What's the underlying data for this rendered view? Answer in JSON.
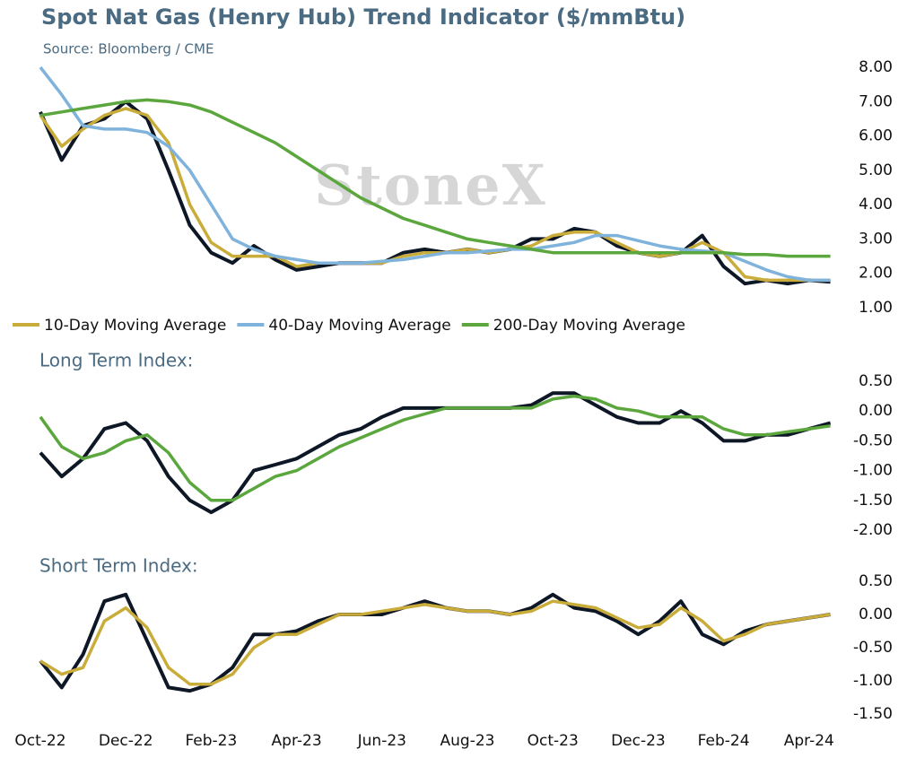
{
  "chart_data": [
    {
      "type": "line",
      "title": "Spot Nat Gas (Henry Hub) Trend Indicator ($/mmBtu)",
      "subtitle": "Source: Bloomberg / CME",
      "watermark": "StoneX",
      "ylim": [
        1,
        8
      ],
      "yticks": [
        {
          "value": 8,
          "label": "8.00"
        },
        {
          "value": 7,
          "label": "7.00"
        },
        {
          "value": 6,
          "label": "6.00"
        },
        {
          "value": 5,
          "label": "5.00"
        },
        {
          "value": 4,
          "label": "4.00"
        },
        {
          "value": 3,
          "label": "3.00"
        },
        {
          "value": 2,
          "label": "2.00"
        },
        {
          "value": 1,
          "label": "1.00"
        }
      ],
      "legend": "bottom",
      "grid": false,
      "series": [
        {
          "color": "#0d1726",
          "values": [
            6.7,
            5.3,
            6.3,
            6.5,
            7.0,
            6.5,
            5.0,
            3.4,
            2.6,
            2.3,
            2.8,
            2.4,
            2.1,
            2.2,
            2.3,
            2.3,
            2.3,
            2.6,
            2.7,
            2.6,
            2.7,
            2.6,
            2.7,
            3.0,
            3.0,
            3.3,
            3.2,
            2.8,
            2.6,
            2.5,
            2.6,
            3.1,
            2.2,
            1.7,
            1.8,
            1.7,
            1.8,
            1.75
          ]
        },
        {
          "name": "10-Day Moving Average",
          "color": "#c9ac3a",
          "values": [
            6.6,
            5.7,
            6.2,
            6.6,
            6.8,
            6.6,
            5.8,
            4.0,
            2.9,
            2.5,
            2.5,
            2.5,
            2.2,
            2.3,
            2.3,
            2.3,
            2.3,
            2.5,
            2.6,
            2.6,
            2.7,
            2.6,
            2.7,
            2.8,
            3.1,
            3.2,
            3.2,
            2.9,
            2.6,
            2.5,
            2.6,
            2.9,
            2.6,
            1.9,
            1.8,
            1.8,
            1.8,
            1.8
          ]
        },
        {
          "name": "40-Day Moving Average",
          "color": "#80b3dc",
          "values": [
            8.0,
            7.2,
            6.3,
            6.2,
            6.2,
            6.1,
            5.7,
            5.0,
            4.0,
            3.0,
            2.7,
            2.5,
            2.4,
            2.3,
            2.3,
            2.3,
            2.35,
            2.4,
            2.5,
            2.6,
            2.6,
            2.65,
            2.7,
            2.7,
            2.8,
            2.9,
            3.1,
            3.1,
            2.95,
            2.8,
            2.7,
            2.65,
            2.6,
            2.35,
            2.1,
            1.9,
            1.8,
            1.8
          ]
        },
        {
          "name": "200-Day Moving Average",
          "color": "#5ba73d",
          "values": [
            6.6,
            6.7,
            6.8,
            6.9,
            7.0,
            7.05,
            7.0,
            6.9,
            6.7,
            6.4,
            6.1,
            5.8,
            5.4,
            5.0,
            4.6,
            4.2,
            3.9,
            3.6,
            3.4,
            3.2,
            3.0,
            2.9,
            2.8,
            2.7,
            2.6,
            2.6,
            2.6,
            2.6,
            2.6,
            2.6,
            2.6,
            2.6,
            2.6,
            2.55,
            2.55,
            2.5,
            2.5,
            2.5
          ]
        }
      ]
    },
    {
      "type": "line",
      "title": "Long Term Index:",
      "ylim": [
        -2,
        0.5
      ],
      "yticks": [
        {
          "value": 0.5,
          "label": "0.50"
        },
        {
          "value": 0,
          "label": "0.00"
        },
        {
          "value": -0.5,
          "label": "-0.50"
        },
        {
          "value": -1,
          "label": "-1.00"
        },
        {
          "value": -1.5,
          "label": "-1.50"
        },
        {
          "value": -2,
          "label": "-2.00"
        }
      ],
      "grid": false,
      "series": [
        {
          "color": "#0d1726",
          "values": [
            -0.7,
            -1.1,
            -0.8,
            -0.3,
            -0.2,
            -0.5,
            -1.1,
            -1.5,
            -1.7,
            -1.5,
            -1.0,
            -0.9,
            -0.8,
            -0.6,
            -0.4,
            -0.3,
            -0.1,
            0.05,
            0.05,
            0.05,
            0.05,
            0.05,
            0.05,
            0.1,
            0.3,
            0.3,
            0.1,
            -0.1,
            -0.2,
            -0.2,
            0.0,
            -0.2,
            -0.5,
            -0.5,
            -0.4,
            -0.4,
            -0.3,
            -0.2
          ]
        },
        {
          "color": "#5ba73d",
          "values": [
            -0.1,
            -0.6,
            -0.8,
            -0.7,
            -0.5,
            -0.4,
            -0.7,
            -1.2,
            -1.5,
            -1.5,
            -1.3,
            -1.1,
            -1.0,
            -0.8,
            -0.6,
            -0.45,
            -0.3,
            -0.15,
            -0.05,
            0.05,
            0.05,
            0.05,
            0.05,
            0.05,
            0.2,
            0.25,
            0.2,
            0.05,
            0.0,
            -0.1,
            -0.1,
            -0.1,
            -0.3,
            -0.4,
            -0.4,
            -0.35,
            -0.3,
            -0.25
          ]
        }
      ]
    },
    {
      "type": "line",
      "title": "Short Term Index:",
      "categories": [
        "Oct-22",
        null,
        null,
        null,
        "Dec-22",
        null,
        null,
        null,
        "Feb-23",
        null,
        null,
        null,
        "Apr-23",
        null,
        null,
        null,
        "Jun-23",
        null,
        null,
        null,
        "Aug-23",
        null,
        null,
        null,
        "Oct-23",
        null,
        null,
        null,
        "Dec-23",
        null,
        null,
        null,
        "Feb-24",
        null,
        null,
        null,
        "Apr-24",
        null
      ],
      "ylim": [
        -1.5,
        0.5
      ],
      "yticks": [
        {
          "value": 0.5,
          "label": "0.50"
        },
        {
          "value": 0,
          "label": "0.00"
        },
        {
          "value": -0.5,
          "label": "-0.50"
        },
        {
          "value": -1,
          "label": "-1.00"
        },
        {
          "value": -1.5,
          "label": "-1.50"
        }
      ],
      "grid": false,
      "series": [
        {
          "color": "#0d1726",
          "values": [
            -0.7,
            -1.1,
            -0.6,
            0.2,
            0.3,
            -0.4,
            -1.1,
            -1.15,
            -1.05,
            -0.8,
            -0.3,
            -0.3,
            -0.25,
            -0.1,
            0.0,
            0.0,
            0.0,
            0.1,
            0.2,
            0.1,
            0.05,
            0.05,
            0.0,
            0.1,
            0.3,
            0.1,
            0.05,
            -0.1,
            -0.3,
            -0.1,
            0.2,
            -0.3,
            -0.45,
            -0.25,
            -0.15,
            -0.1,
            -0.05,
            0.0
          ]
        },
        {
          "color": "#c9ac3a",
          "values": [
            -0.7,
            -0.9,
            -0.8,
            -0.1,
            0.1,
            -0.2,
            -0.8,
            -1.05,
            -1.05,
            -0.9,
            -0.5,
            -0.3,
            -0.3,
            -0.15,
            0.0,
            0.0,
            0.05,
            0.1,
            0.15,
            0.1,
            0.05,
            0.05,
            0.0,
            0.05,
            0.2,
            0.15,
            0.1,
            -0.05,
            -0.2,
            -0.15,
            0.1,
            -0.1,
            -0.4,
            -0.3,
            -0.15,
            -0.1,
            -0.05,
            0.0
          ]
        }
      ]
    }
  ]
}
